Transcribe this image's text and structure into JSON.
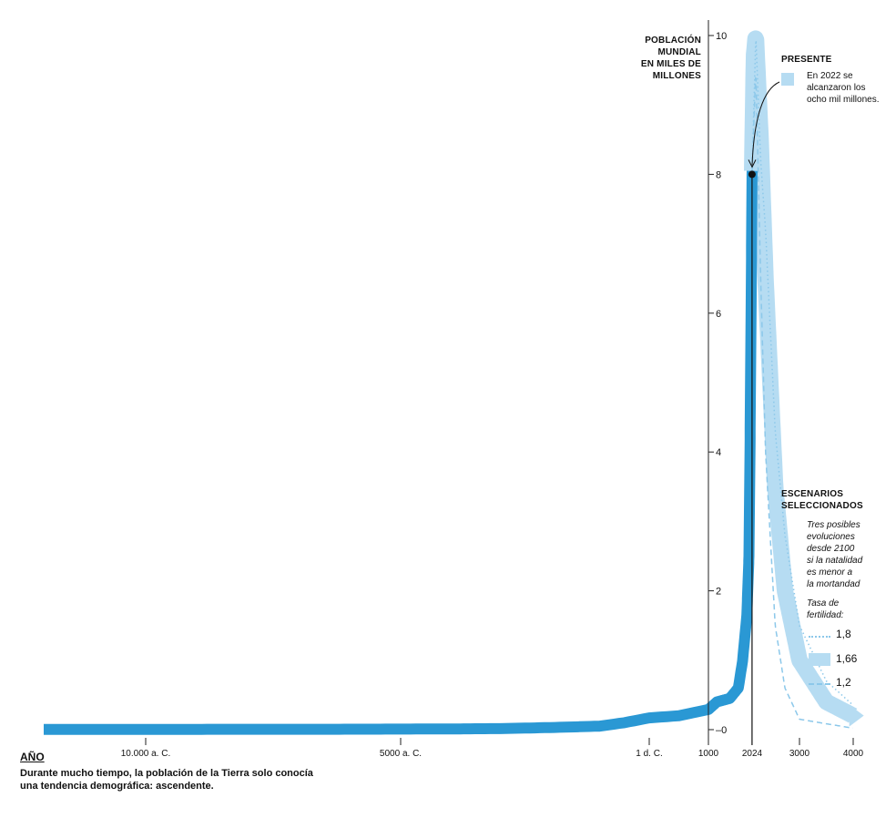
{
  "chart_data": {
    "type": "area",
    "title": "",
    "ylabel": "POBLACIÓN MUNDIAL EN MILES DE MILLONES",
    "xlabel": "AÑO",
    "ylim": [
      0,
      10
    ],
    "y_ticks": [
      0,
      2,
      4,
      6,
      8,
      10
    ],
    "x_tick_labels": [
      "10.000 a. C.",
      "5000 a. C.",
      "1 d. C.",
      "1000",
      "2024",
      "3000",
      "4000"
    ],
    "x_scale": "broken (compressed prehistory, expanded modern era)",
    "series": [
      {
        "name": "",
        "role": "historical",
        "color": "#2a98d4",
        "x": [
          -12000,
          -10000,
          -8000,
          -6000,
          -5000,
          -4000,
          -3000,
          -2000,
          -1000,
          -500,
          1,
          500,
          1000,
          1200,
          1500,
          1700,
          1800,
          1900,
          1950,
          1975,
          2000,
          2022,
          2024
        ],
        "y": [
          0.002,
          0.004,
          0.005,
          0.006,
          0.008,
          0.01,
          0.015,
          0.03,
          0.05,
          0.1,
          0.17,
          0.2,
          0.29,
          0.4,
          0.45,
          0.6,
          0.99,
          1.65,
          2.5,
          4.1,
          6.1,
          8.0,
          8.05
        ]
      },
      {
        "name": "1,66",
        "role": "scenario",
        "color": "#b6dcf2",
        "x": [
          2024,
          2060,
          2100,
          2200,
          2300,
          2500,
          2700,
          3000,
          3500,
          4000
        ],
        "y": [
          8.05,
          9.7,
          10.0,
          8.5,
          6.5,
          3.5,
          2.0,
          1.0,
          0.4,
          0.2
        ]
      },
      {
        "name": "1,8",
        "role": "scenario",
        "color": "#8cc8ea",
        "x": [
          2024,
          2100,
          2200,
          2300,
          2500,
          2700,
          3000,
          3500,
          4000
        ],
        "y": [
          8.05,
          10.0,
          8.2,
          7.2,
          4.3,
          2.8,
          1.5,
          0.7,
          0.35
        ]
      },
      {
        "name": "1,2",
        "role": "scenario",
        "color": "#8cc8ea",
        "x": [
          2024,
          2100,
          2200,
          2300,
          2500,
          2700,
          3000,
          4000
        ],
        "y": [
          8.05,
          9.5,
          6.5,
          4.0,
          1.5,
          0.6,
          0.15,
          0.02
        ]
      }
    ],
    "marker": {
      "year": 2022,
      "value": 8.0
    }
  },
  "labels": {
    "y_title": [
      "POBLACIÓN",
      "MUNDIAL",
      "EN MILES DE",
      "MILLONES"
    ],
    "x_title": "AÑO",
    "caption": [
      "Durante mucho tiempo, la población de la Tierra solo conocía",
      "una tendencia demográfica: ascendente."
    ],
    "present_title": "PRESENTE",
    "present_text": [
      "En 2022 se",
      "alcanzaron los",
      "ocho mil millones."
    ],
    "scenarios_title": [
      "ESCENARIOS",
      "SELECCIONADOS"
    ],
    "scenarios_text": [
      "Tres posibles",
      "evoluciones",
      "desde 2100",
      "si la natalidad",
      "es menor a",
      "la mortandad"
    ],
    "fertility_title": [
      "Tasa de",
      "fertilidad:"
    ],
    "legend": [
      {
        "label": "1,8",
        "style": "dotted"
      },
      {
        "label": "1,66",
        "style": "band"
      },
      {
        "label": "1,2",
        "style": "dashed"
      }
    ]
  },
  "colors": {
    "historical": "#2a98d4",
    "scenario_band": "#b6dcf2",
    "scenario_line": "#8cc8ea",
    "marker": "#111111"
  }
}
